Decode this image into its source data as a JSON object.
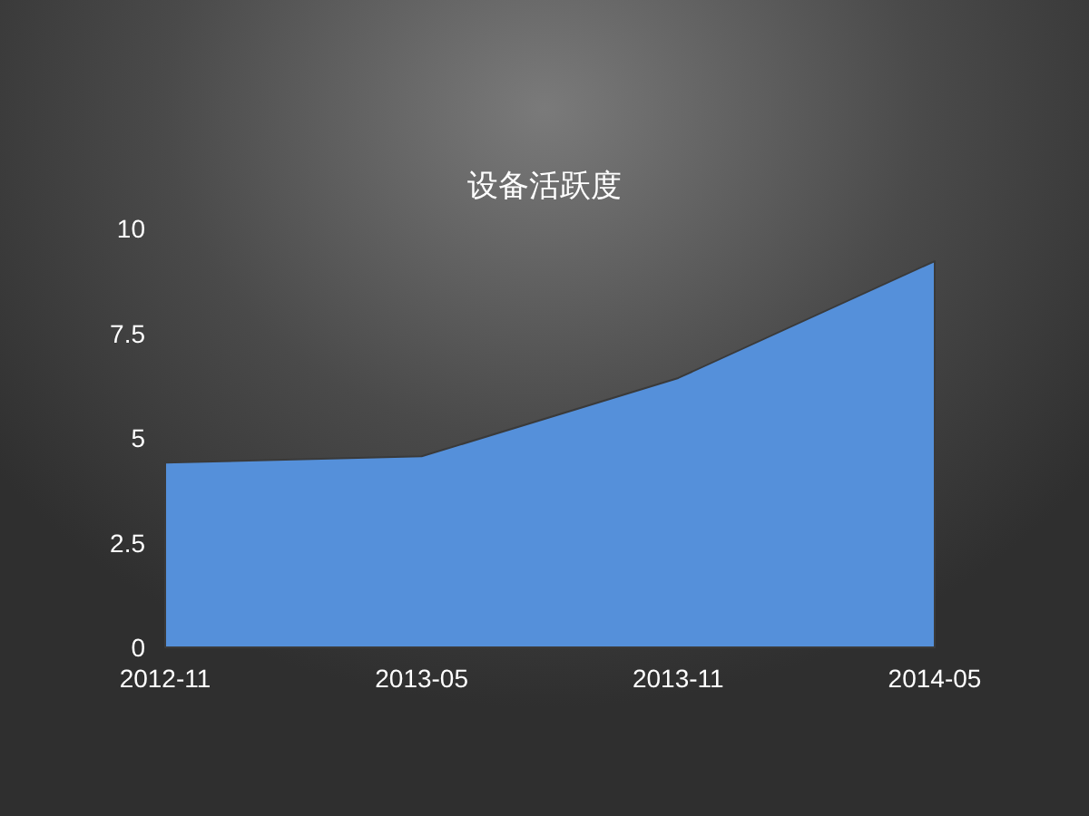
{
  "chart_data": {
    "type": "area",
    "title": "设备活跃度",
    "categories": [
      "2012-11",
      "2013-05",
      "2013-11",
      "2014-05"
    ],
    "values": [
      4.41,
      4.56,
      6.43,
      9.22
    ],
    "color": "#5590da",
    "ylim": [
      0,
      10
    ],
    "yticks": [
      0,
      2.5,
      5,
      7.5,
      10
    ],
    "grid": false,
    "legend": false
  }
}
